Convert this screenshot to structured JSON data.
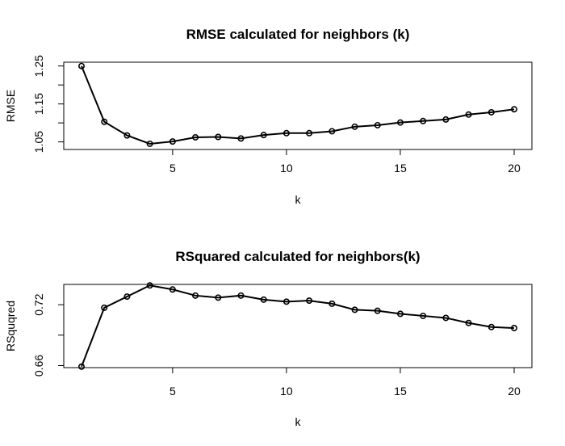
{
  "chart_data": [
    {
      "type": "line",
      "title": "RMSE calculated for neighbors (k)",
      "xlabel": "k",
      "ylabel": "RMSE",
      "xlim": [
        1,
        20
      ],
      "ylim": [
        1.03,
        1.26
      ],
      "x_ticks": [
        5,
        10,
        15,
        20
      ],
      "y_ticks": [
        1.05,
        1.15,
        1.25
      ],
      "grid": false,
      "series": [
        {
          "x": [
            1,
            2,
            3,
            4,
            5,
            6,
            7,
            8,
            9,
            10,
            11,
            12,
            13,
            14,
            15,
            16,
            17,
            18,
            19,
            20
          ],
          "values": [
            1.25,
            1.103,
            1.067,
            1.045,
            1.051,
            1.062,
            1.063,
            1.059,
            1.068,
            1.073,
            1.073,
            1.078,
            1.09,
            1.094,
            1.101,
            1.105,
            1.109,
            1.122,
            1.128,
            1.136
          ]
        }
      ]
    },
    {
      "type": "line",
      "title": "RSquared calculated for neighbors(k)",
      "xlabel": "k",
      "ylabel": "RSquqred",
      "xlim": [
        1,
        20
      ],
      "ylim": [
        0.658,
        0.74
      ],
      "x_ticks": [
        5,
        10,
        15,
        20
      ],
      "y_ticks": [
        0.66,
        0.72
      ],
      "grid": false,
      "series": [
        {
          "x": [
            1,
            2,
            3,
            4,
            5,
            6,
            7,
            8,
            9,
            10,
            11,
            12,
            13,
            14,
            15,
            16,
            17,
            18,
            19,
            20
          ],
          "values": [
            0.659,
            0.717,
            0.728,
            0.739,
            0.735,
            0.729,
            0.727,
            0.729,
            0.725,
            0.723,
            0.724,
            0.721,
            0.715,
            0.714,
            0.711,
            0.709,
            0.707,
            0.702,
            0.698,
            0.697
          ]
        }
      ]
    }
  ]
}
